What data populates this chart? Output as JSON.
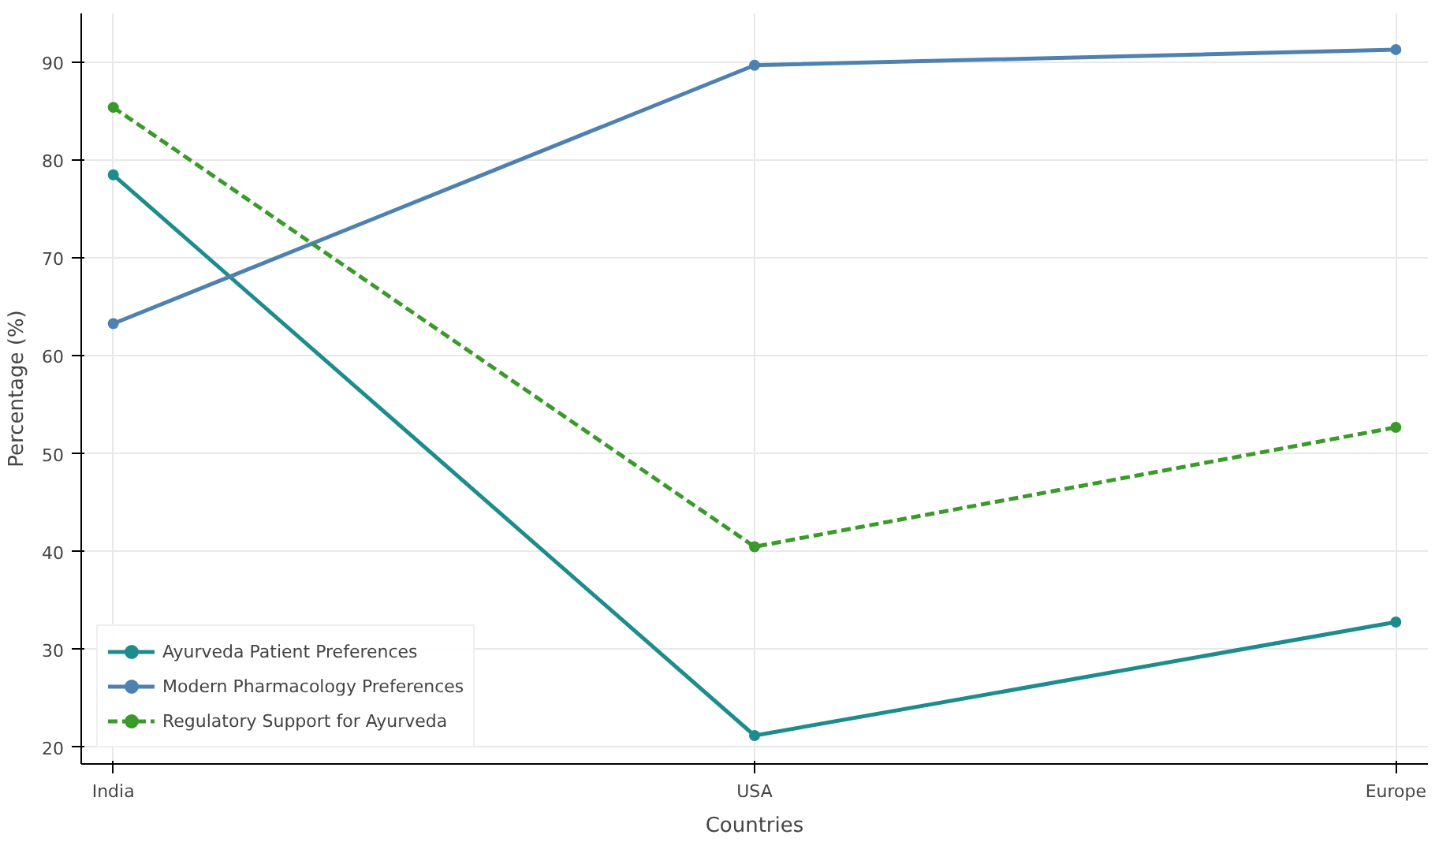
{
  "chart_data": {
    "type": "line",
    "xlabel": "Countries",
    "ylabel": "Percentage (%)",
    "categories": [
      "India",
      "USA",
      "Europe"
    ],
    "series": [
      {
        "name": "Ayurveda Patient Preferences",
        "color": "#1e8c8c",
        "values": [
          78.5,
          21.2,
          32.8
        ],
        "line_style": "solid"
      },
      {
        "name": "Modern Pharmacology Preferences",
        "color": "#4f81b0",
        "values": [
          63.3,
          89.7,
          91.3
        ],
        "line_style": "solid"
      },
      {
        "name": "Regulatory Support for Ayurveda",
        "color": "#3a9a2a",
        "values": [
          85.4,
          40.5,
          52.7
        ],
        "line_style": "dashed"
      }
    ],
    "ylim": [
      18.3,
      95
    ],
    "yticks": [
      20,
      30,
      40,
      50,
      60,
      70,
      80,
      90
    ],
    "grid": true,
    "legend": "bottom left",
    "marker": "circle"
  }
}
